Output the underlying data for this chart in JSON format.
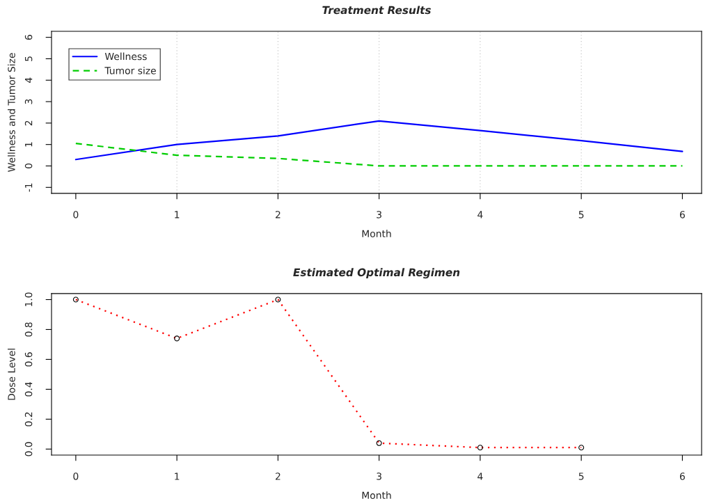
{
  "chart_data": [
    {
      "type": "line",
      "title": "Treatment Results",
      "xlabel": "Month",
      "ylabel": "Wellness and Tumor Size",
      "x": [
        0,
        1,
        2,
        3,
        4,
        5,
        6
      ],
      "series": [
        {
          "name": "Wellness",
          "color": "#0000ff",
          "line_style": "solid",
          "values": [
            0.3,
            1.0,
            1.4,
            2.1,
            1.65,
            1.18,
            0.68
          ]
        },
        {
          "name": "Tumor size",
          "color": "#00cd00",
          "line_style": "dashed",
          "values": [
            1.05,
            0.5,
            0.35,
            0,
            0,
            0,
            0
          ]
        }
      ],
      "xlim": [
        -0.24,
        6.19
      ],
      "xticks": [
        0,
        1,
        2,
        3,
        4,
        5,
        6
      ],
      "ylim": [
        -1.28,
        6.28
      ],
      "yticks": [
        -1,
        0,
        1,
        2,
        3,
        4,
        5,
        6
      ],
      "ref_lines": [
        {
          "axis": "x",
          "value": 1,
          "color": "#bebebe",
          "line_style": "dotted"
        },
        {
          "axis": "x",
          "value": 2,
          "color": "#bebebe",
          "line_style": "dotted"
        },
        {
          "axis": "x",
          "value": 3,
          "color": "#bebebe",
          "line_style": "dotted"
        },
        {
          "axis": "x",
          "value": 4,
          "color": "#bebebe",
          "line_style": "dotted"
        },
        {
          "axis": "x",
          "value": 5,
          "color": "#bebebe",
          "line_style": "dotted"
        }
      ],
      "grid": false,
      "legend": "top left",
      "marker": "none"
    },
    {
      "type": "line",
      "title": "Estimated Optimal Regimen",
      "xlabel": "Month",
      "ylabel": "Dose Level",
      "x": [
        0,
        1,
        2,
        3,
        4,
        5
      ],
      "series": [
        {
          "color": "#ff0000",
          "line_style": "dotted",
          "values": [
            1.0,
            0.74,
            1.0,
            0.04,
            0.01,
            0.01
          ]
        }
      ],
      "xlim": [
        -0.24,
        6.19
      ],
      "xticks": [
        0,
        1,
        2,
        3,
        4,
        5,
        6
      ],
      "ylim": [
        -0.04,
        1.04
      ],
      "yticks": [
        {
          "value": 0,
          "label": "0.0"
        },
        {
          "value": 0.2,
          "label": "0.2"
        },
        {
          "value": 0.4,
          "label": "0.4"
        },
        {
          "value": 0.6,
          "label": "0.6"
        },
        {
          "value": 0.8,
          "label": "0.8"
        },
        {
          "value": 1,
          "label": "1.0"
        }
      ],
      "grid": false,
      "legend": false,
      "marker": "circle"
    }
  ]
}
